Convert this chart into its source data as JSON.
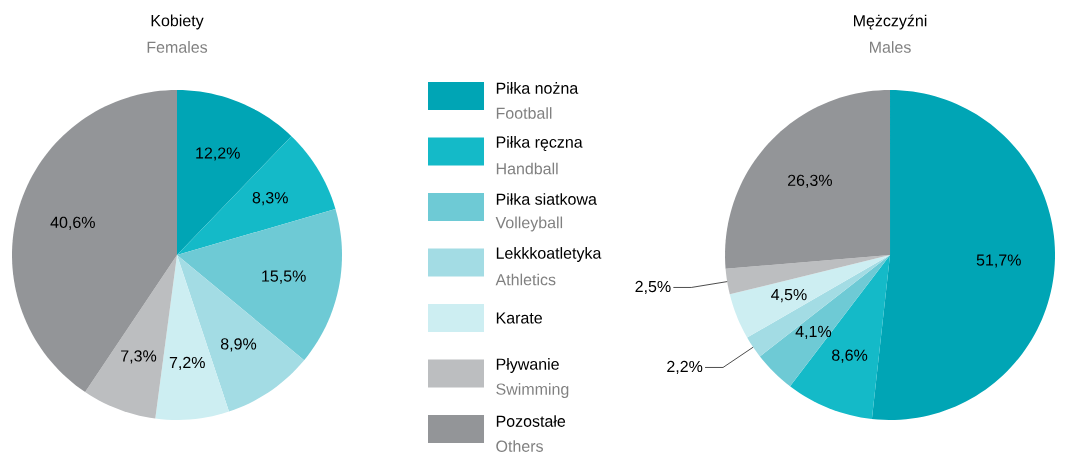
{
  "chart_data": [
    {
      "type": "pie",
      "title": "Kobiety",
      "subtitle": "Females",
      "categories": [
        "Piłka nożna",
        "Piłka ręczna",
        "Piłka siatkowa",
        "Lekkkoatletyka",
        "Karate",
        "Pływanie",
        "Pozostałe"
      ],
      "annotations": [
        "Football",
        "Handball",
        "Volleyball",
        "Athletics",
        null,
        "Swimming",
        "Others"
      ],
      "values": [
        12.2,
        8.3,
        15.5,
        8.9,
        7.2,
        7.3,
        40.6
      ],
      "value_labels": [
        "12,2%",
        "8,3%",
        "15,5%",
        "8,9%",
        "7,2%",
        "7,3%",
        "40,6%"
      ],
      "colors": [
        "#00a5b5",
        "#14bac8",
        "#6ecad5",
        "#a3dce4",
        "#cdeef2",
        "#bcbec0",
        "#939598"
      ],
      "legend": "right"
    },
    {
      "type": "pie",
      "title": "Mężczyźni",
      "subtitle": "Males",
      "categories": [
        null,
        null,
        null,
        null,
        null,
        null,
        null
      ],
      "values": [
        51.7,
        8.6,
        4.1,
        2.2,
        4.5,
        2.5,
        26.3
      ],
      "value_labels": [
        "51,7%",
        "8,6%",
        "4,1%",
        "2,2%",
        "4,5%",
        "2,5%",
        "26,3%"
      ],
      "colors": [
        "#00a5b5",
        "#14bac8",
        "#6ecad5",
        "#a3dce4",
        "#cdeef2",
        "#bcbec0",
        "#939598"
      ]
    }
  ]
}
